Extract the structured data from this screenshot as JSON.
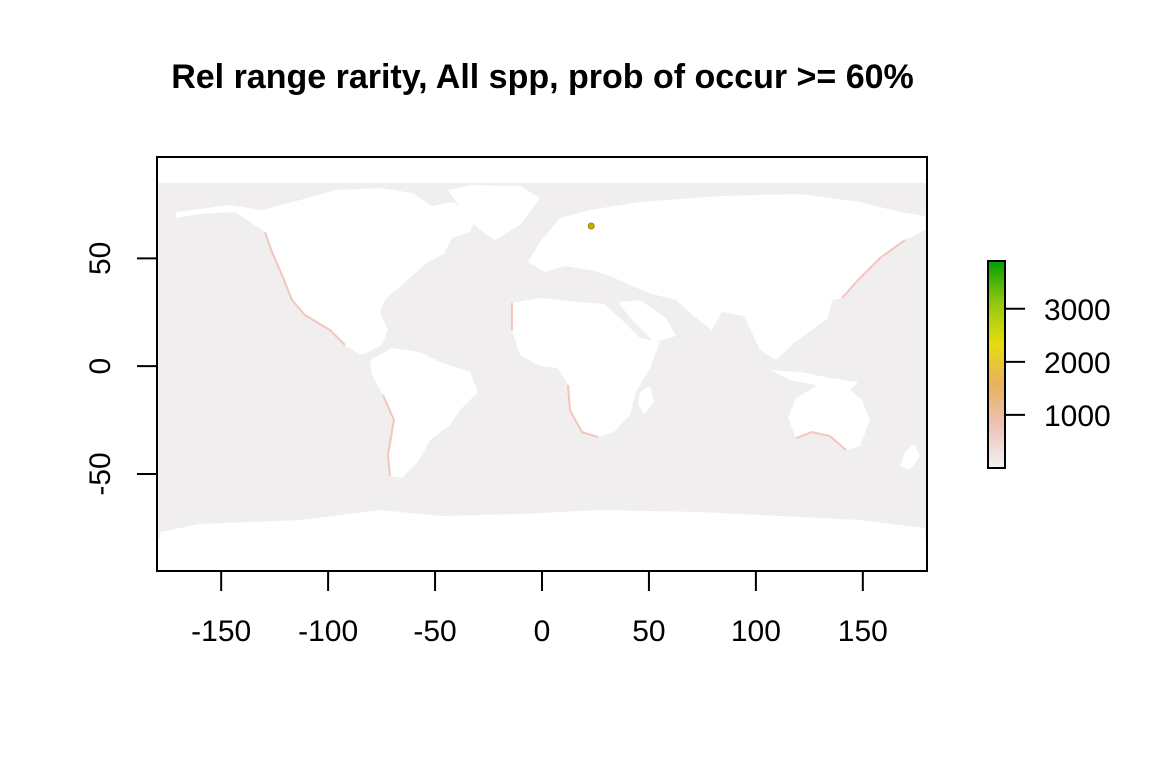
{
  "title": "Rel range rarity, All spp, prob of occur >= 60%",
  "map": {
    "x_ticks": [
      -150,
      -100,
      -50,
      0,
      50,
      100,
      150
    ],
    "y_ticks": [
      50,
      0,
      -50
    ],
    "xlim": [
      -180,
      180
    ],
    "ylim": [
      -95,
      97
    ],
    "ocean_color": "#f0eeee",
    "coastal_color": "#f0b6aa",
    "hotspot": {
      "lon": 23,
      "lat": 65
    }
  },
  "legend": {
    "ticks": [
      1000,
      2000,
      3000
    ],
    "range": [
      0,
      3900
    ],
    "colors": [
      "#f2f2f2",
      "#eec4b8",
      "#e8b060",
      "#e6dc10",
      "#90c810",
      "#00a000"
    ]
  }
}
